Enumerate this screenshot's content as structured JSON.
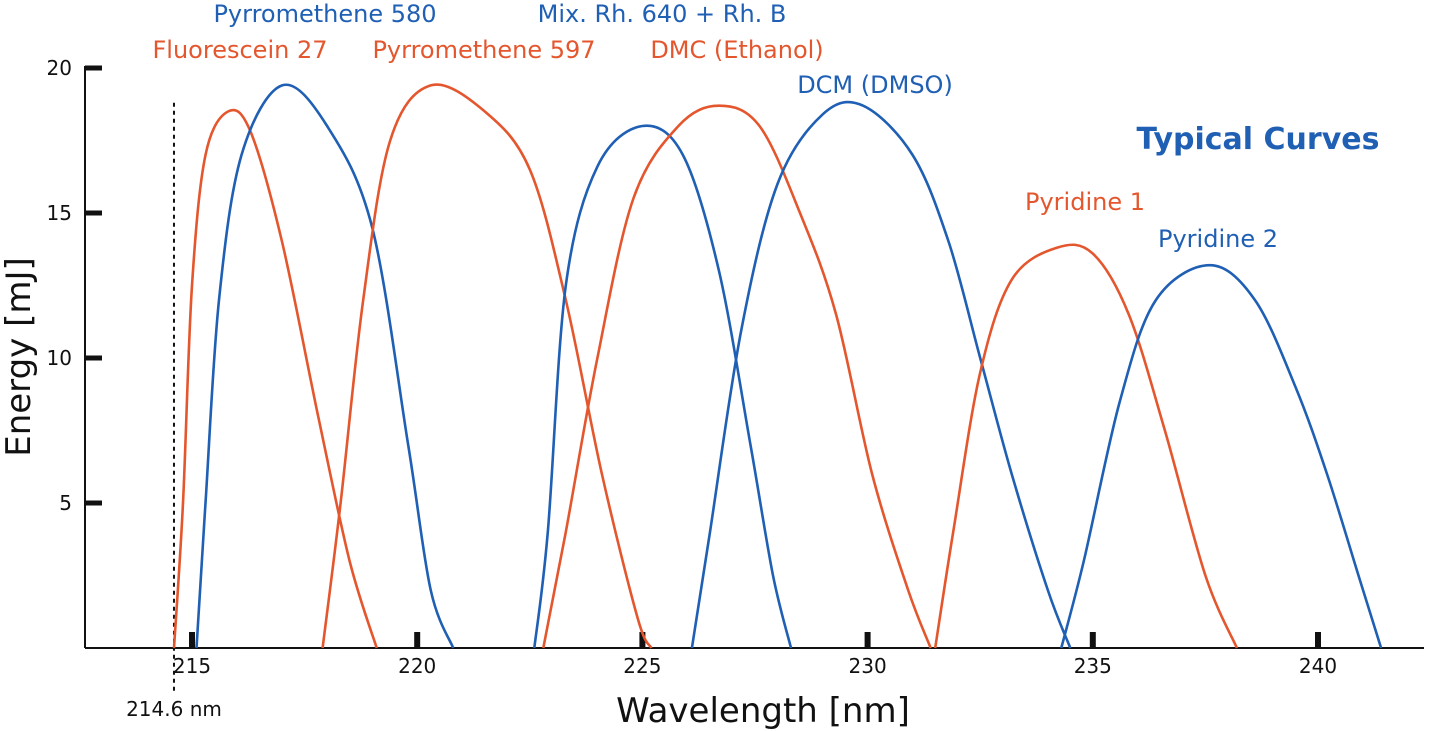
{
  "chart_data": {
    "type": "line",
    "title": "Typical Curves",
    "xlabel": "Wavelength [nm]",
    "ylabel": "Energy [mJ]",
    "xlim": [
      213.1,
      243.0
    ],
    "ylim": [
      0,
      20
    ],
    "x_ticks": [
      215,
      220,
      225,
      230,
      235,
      240
    ],
    "y_ticks": [
      5,
      10,
      15,
      20
    ],
    "grid": false,
    "legend": "none",
    "colors": {
      "orange": "#e4572e",
      "blue": "#1f5fb4",
      "title": "#1f5fb4",
      "axis": "#111111"
    },
    "annotation": {
      "x": 214.6,
      "label": "214.6 nm",
      "line_top": 18.8
    },
    "series": [
      {
        "name": "Fluorescein 27",
        "color": "#e4572e",
        "points": [
          [
            214.6,
            0
          ],
          [
            214.8,
            5
          ],
          [
            215.0,
            12.5
          ],
          [
            215.3,
            17.0
          ],
          [
            215.8,
            18.5
          ],
          [
            216.3,
            17.8
          ],
          [
            217.0,
            14.0
          ],
          [
            217.8,
            8.0
          ],
          [
            218.5,
            3.0
          ],
          [
            219.1,
            0
          ]
        ]
      },
      {
        "name": "Pyrromethene 580",
        "color": "#1f5fb4",
        "points": [
          [
            215.1,
            0
          ],
          [
            215.3,
            5
          ],
          [
            215.6,
            12.0
          ],
          [
            216.1,
            17.0
          ],
          [
            217.0,
            19.4
          ],
          [
            218.0,
            18.0
          ],
          [
            219.0,
            14.5
          ],
          [
            219.8,
            7.0
          ],
          [
            220.3,
            2.0
          ],
          [
            220.8,
            0
          ]
        ]
      },
      {
        "name": "Pyrromethene 597",
        "color": "#e4572e",
        "points": [
          [
            217.9,
            0
          ],
          [
            218.3,
            5
          ],
          [
            218.8,
            12.0
          ],
          [
            219.4,
            17.5
          ],
          [
            220.3,
            19.4
          ],
          [
            221.5,
            18.5
          ],
          [
            222.5,
            16.5
          ],
          [
            223.3,
            12.0
          ],
          [
            224.1,
            6.0
          ],
          [
            224.9,
            1.0
          ],
          [
            225.2,
            0
          ]
        ]
      },
      {
        "name": "Mix. Rh. 640 + Rh. B",
        "color": "#1f5fb4",
        "points": [
          [
            222.6,
            0
          ],
          [
            222.9,
            4
          ],
          [
            223.3,
            12.5
          ],
          [
            224.0,
            16.6
          ],
          [
            225.0,
            18.0
          ],
          [
            225.9,
            17.0
          ],
          [
            226.7,
            13.0
          ],
          [
            227.4,
            7.0
          ],
          [
            227.9,
            2.5
          ],
          [
            228.3,
            0
          ]
        ]
      },
      {
        "name": "DMC (Ethanol)",
        "color": "#e4572e",
        "points": [
          [
            222.8,
            0
          ],
          [
            223.3,
            4
          ],
          [
            224.0,
            10.0
          ],
          [
            224.8,
            15.5
          ],
          [
            225.8,
            18.0
          ],
          [
            226.7,
            18.7
          ],
          [
            227.6,
            18.0
          ],
          [
            228.5,
            15.0
          ],
          [
            229.3,
            11.5
          ],
          [
            230.1,
            6.0
          ],
          [
            230.9,
            2.0
          ],
          [
            231.4,
            0
          ]
        ]
      },
      {
        "name": "DCM (DMSO)",
        "color": "#1f5fb4",
        "points": [
          [
            226.1,
            0
          ],
          [
            226.5,
            4
          ],
          [
            227.2,
            11.0
          ],
          [
            228.0,
            16.0
          ],
          [
            229.0,
            18.4
          ],
          [
            229.9,
            18.7
          ],
          [
            231.0,
            17.0
          ],
          [
            231.8,
            14.0
          ],
          [
            232.5,
            10.0
          ],
          [
            233.2,
            6.0
          ],
          [
            234.0,
            2.0
          ],
          [
            234.5,
            0
          ]
        ]
      },
      {
        "name": "Pyridine 1",
        "color": "#e4572e",
        "points": [
          [
            231.5,
            0
          ],
          [
            231.9,
            4
          ],
          [
            232.5,
            9.5
          ],
          [
            233.2,
            12.7
          ],
          [
            234.2,
            13.8
          ],
          [
            235.0,
            13.6
          ],
          [
            235.8,
            11.5
          ],
          [
            236.6,
            7.5
          ],
          [
            237.5,
            2.5
          ],
          [
            238.2,
            0
          ]
        ]
      },
      {
        "name": "Pyridine 2",
        "color": "#1f5fb4",
        "points": [
          [
            234.3,
            0
          ],
          [
            234.8,
            3
          ],
          [
            235.6,
            8.5
          ],
          [
            236.4,
            12.0
          ],
          [
            237.6,
            13.2
          ],
          [
            238.6,
            12.0
          ],
          [
            239.5,
            9.0
          ],
          [
            240.2,
            6.0
          ],
          [
            240.9,
            2.5
          ],
          [
            241.4,
            0
          ]
        ]
      }
    ],
    "curve_labels": [
      {
        "text": "Pyrromethene 580",
        "color": "#1f5fb4"
      },
      {
        "text": "Fluorescein 27",
        "color": "#e4572e"
      },
      {
        "text": "Pyrromethene 597",
        "color": "#e4572e"
      },
      {
        "text": "Mix. Rh. 640 + Rh. B",
        "color": "#1f5fb4"
      },
      {
        "text": "DMC (Ethanol)",
        "color": "#e4572e"
      },
      {
        "text": "DCM (DMSO)",
        "color": "#1f5fb4"
      },
      {
        "text": "Pyridine 1",
        "color": "#e4572e"
      },
      {
        "text": "Pyridine 2",
        "color": "#1f5fb4"
      }
    ]
  }
}
